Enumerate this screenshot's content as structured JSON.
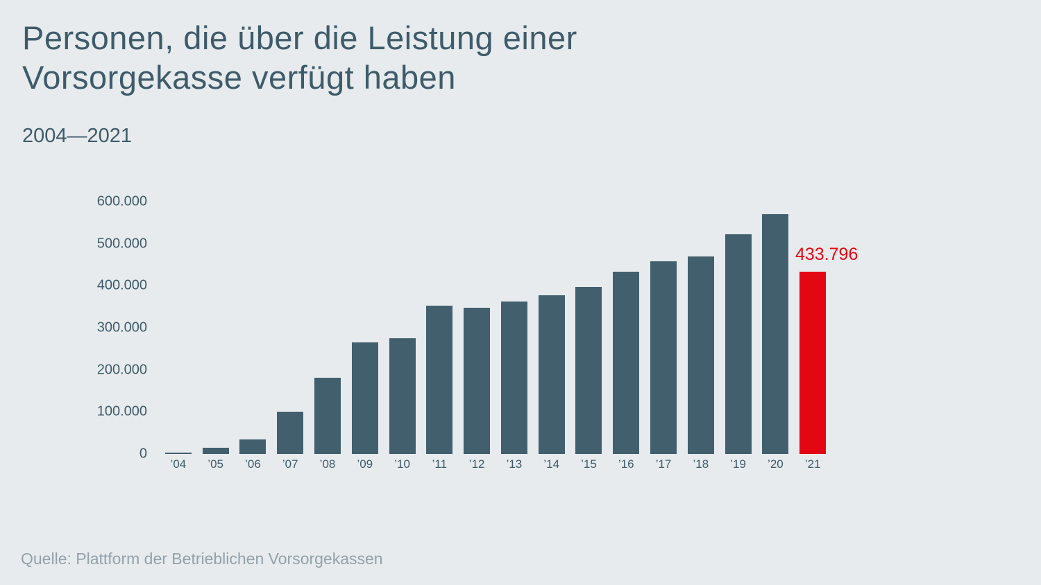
{
  "header": {
    "title": "Personen, die über die Leistung einer Vorsorgekasse verfügt haben",
    "subtitle": "2004—2021"
  },
  "footer": {
    "source": "Quelle: Plattform der Betrieblichen Vorsorgekassen"
  },
  "chart_data": {
    "type": "bar",
    "title": "Personen, die über die Leistung einer Vorsorgekasse verfügt haben",
    "subtitle": "2004—2021",
    "categories": [
      "’04",
      "’05",
      "’06",
      "’07",
      "’08",
      "’09",
      "’10",
      "’11",
      "’12",
      "’13",
      "’14",
      "’15",
      "’16",
      "’17",
      "’18",
      "’19",
      "’20",
      "’21"
    ],
    "values": [
      4000,
      15000,
      35000,
      100000,
      181000,
      266000,
      275000,
      353000,
      348000,
      362000,
      378000,
      398000,
      434000,
      458000,
      470000,
      523000,
      570000,
      433796
    ],
    "ylim": [
      0,
      600000
    ],
    "ytick_labels": [
      "600.000",
      "500.000",
      "400.000",
      "300.000",
      "200.000",
      "100.000",
      "0"
    ],
    "xlabel": "",
    "ylabel": "",
    "grid": false,
    "legend": "none",
    "bar_color": "#425f6d",
    "highlight_index": 17,
    "highlight_color": "#e30613",
    "highlight_label": "433.796",
    "background_color": "#e7ebed"
  }
}
